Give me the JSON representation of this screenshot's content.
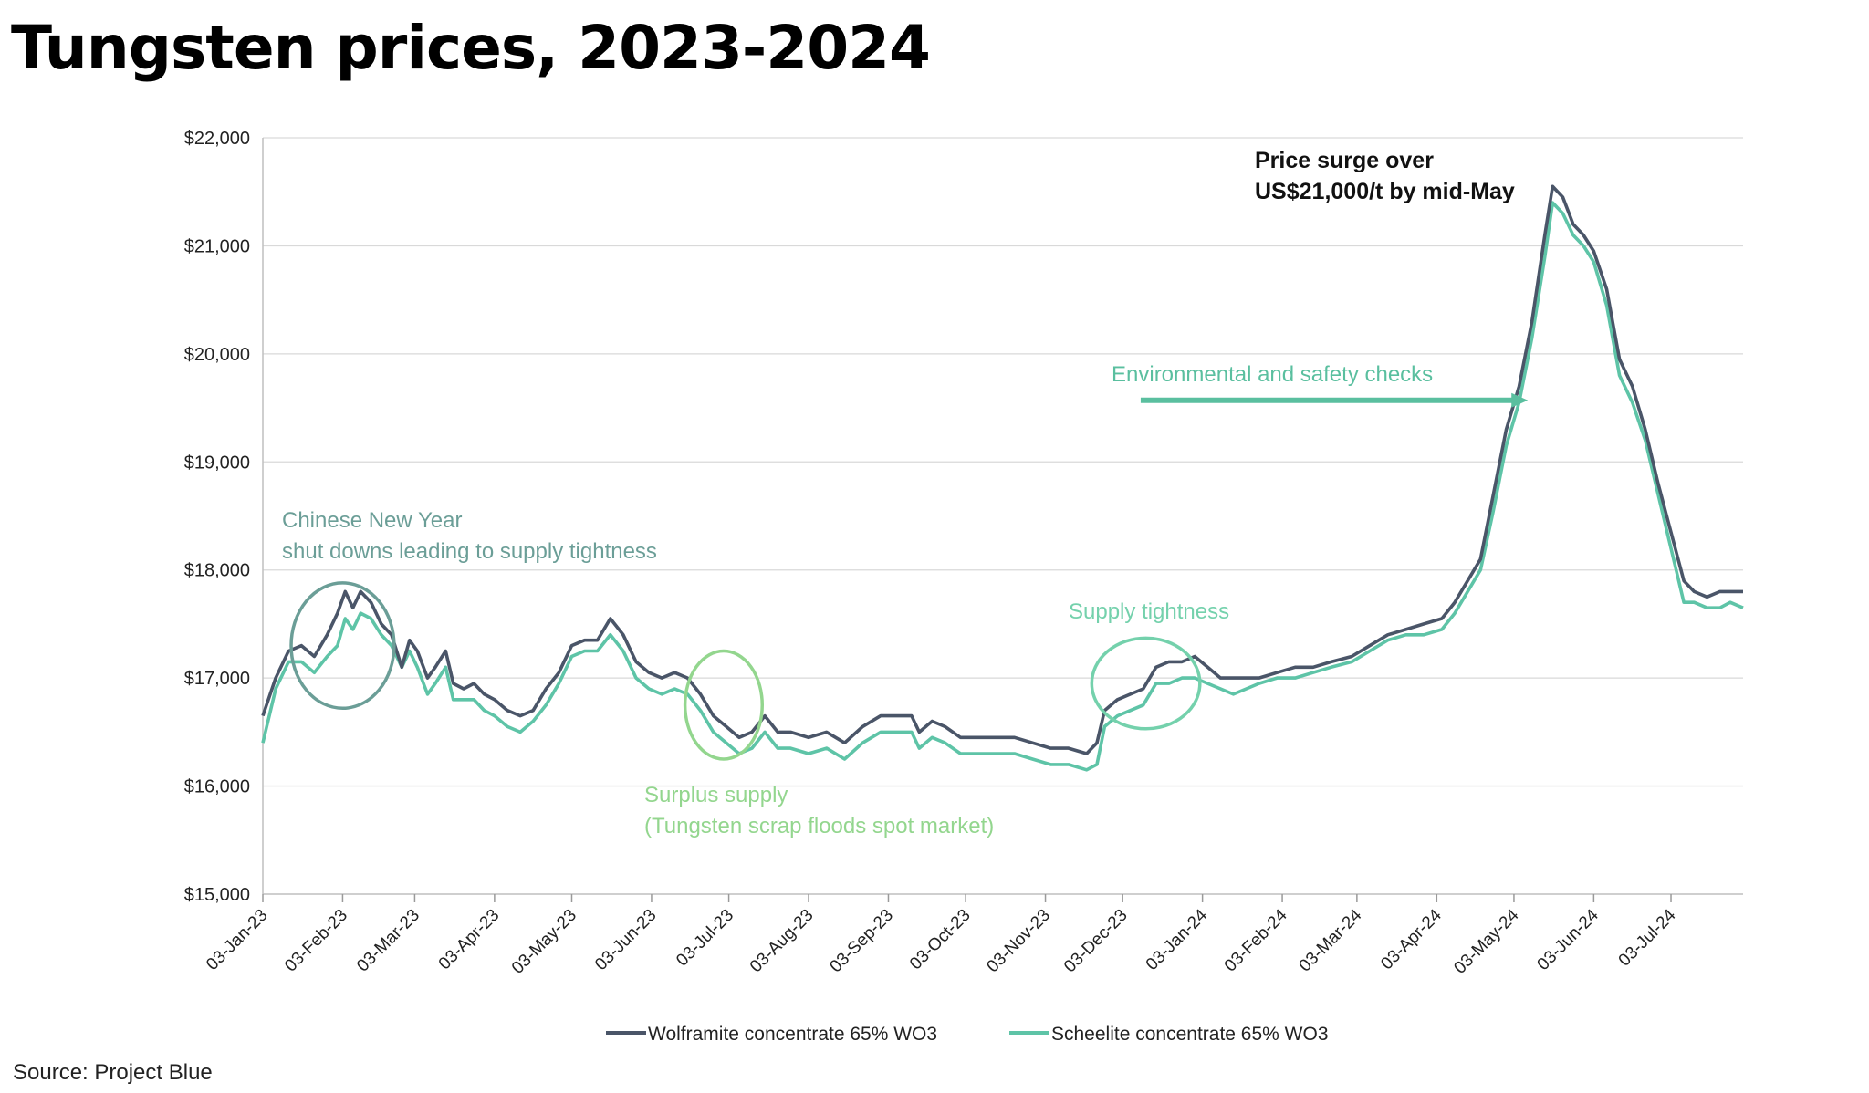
{
  "title": "Tungsten prices, 2023-2024",
  "source": "Source: Project Blue",
  "colors": {
    "wolframite": "#4a5568",
    "scheelite": "#5ec4a7",
    "cny": "#6b9e97",
    "surplus": "#93d68e",
    "tightness": "#74d1ac",
    "env": "#5abf9f",
    "surge": "#111111"
  },
  "chart_data": {
    "type": "line",
    "title": "",
    "xlabel": "",
    "ylabel": "",
    "ylim": [
      15000,
      22000
    ],
    "yticks": [
      15000,
      16000,
      17000,
      18000,
      19000,
      20000,
      21000,
      22000
    ],
    "ytick_labels": [
      "$15,000",
      "$16,000",
      "$17,000",
      "$18,000",
      "$19,000",
      "$20,000",
      "$21,000",
      "$22,000"
    ],
    "xlim": [
      "2023-01-03",
      "2024-07-31"
    ],
    "xticks": [
      "2023-01-03",
      "2023-02-03",
      "2023-03-03",
      "2023-04-03",
      "2023-05-03",
      "2023-06-03",
      "2023-07-03",
      "2023-08-03",
      "2023-09-03",
      "2023-10-03",
      "2023-11-03",
      "2023-12-03",
      "2024-01-03",
      "2024-02-03",
      "2024-03-03",
      "2024-04-03",
      "2024-05-03",
      "2024-06-03",
      "2024-07-03"
    ],
    "xtick_labels": [
      "03-Jan-23",
      "03-Feb-23",
      "03-Mar-23",
      "03-Apr-23",
      "03-May-23",
      "03-Jun-23",
      "03-Jul-23",
      "03-Aug-23",
      "03-Sep-23",
      "03-Oct-23",
      "03-Nov-23",
      "03-Dec-23",
      "03-Jan-24",
      "03-Feb-24",
      "03-Mar-24",
      "03-Apr-24",
      "03-May-24",
      "03-Jun-24",
      "03-Jul-24"
    ],
    "grid": true,
    "legend_position": "bottom",
    "series": [
      {
        "name": "Wolframite concentrate 65% WO3",
        "color": "#4a5568",
        "points": [
          [
            "2023-01-03",
            16650
          ],
          [
            "2023-01-08",
            17000
          ],
          [
            "2023-01-13",
            17250
          ],
          [
            "2023-01-18",
            17300
          ],
          [
            "2023-01-23",
            17200
          ],
          [
            "2023-01-28",
            17400
          ],
          [
            "2023-02-01",
            17600
          ],
          [
            "2023-02-04",
            17800
          ],
          [
            "2023-02-07",
            17650
          ],
          [
            "2023-02-10",
            17800
          ],
          [
            "2023-02-14",
            17700
          ],
          [
            "2023-02-18",
            17500
          ],
          [
            "2023-02-22",
            17400
          ],
          [
            "2023-02-26",
            17100
          ],
          [
            "2023-03-01",
            17350
          ],
          [
            "2023-03-04",
            17250
          ],
          [
            "2023-03-08",
            17000
          ],
          [
            "2023-03-11",
            17100
          ],
          [
            "2023-03-15",
            17250
          ],
          [
            "2023-03-18",
            16950
          ],
          [
            "2023-03-22",
            16900
          ],
          [
            "2023-03-26",
            16950
          ],
          [
            "2023-03-30",
            16850
          ],
          [
            "2023-04-03",
            16800
          ],
          [
            "2023-04-08",
            16700
          ],
          [
            "2023-04-13",
            16650
          ],
          [
            "2023-04-18",
            16700
          ],
          [
            "2023-04-23",
            16900
          ],
          [
            "2023-04-28",
            17050
          ],
          [
            "2023-05-03",
            17300
          ],
          [
            "2023-05-08",
            17350
          ],
          [
            "2023-05-13",
            17350
          ],
          [
            "2023-05-18",
            17550
          ],
          [
            "2023-05-23",
            17400
          ],
          [
            "2023-05-28",
            17150
          ],
          [
            "2023-06-02",
            17050
          ],
          [
            "2023-06-07",
            17000
          ],
          [
            "2023-06-12",
            17050
          ],
          [
            "2023-06-17",
            17000
          ],
          [
            "2023-06-22",
            16850
          ],
          [
            "2023-06-27",
            16650
          ],
          [
            "2023-07-02",
            16550
          ],
          [
            "2023-07-07",
            16450
          ],
          [
            "2023-07-12",
            16500
          ],
          [
            "2023-07-17",
            16650
          ],
          [
            "2023-07-22",
            16500
          ],
          [
            "2023-07-27",
            16500
          ],
          [
            "2023-08-03",
            16450
          ],
          [
            "2023-08-10",
            16500
          ],
          [
            "2023-08-17",
            16400
          ],
          [
            "2023-08-24",
            16550
          ],
          [
            "2023-08-31",
            16650
          ],
          [
            "2023-09-07",
            16650
          ],
          [
            "2023-09-12",
            16650
          ],
          [
            "2023-09-15",
            16500
          ],
          [
            "2023-09-20",
            16600
          ],
          [
            "2023-09-25",
            16550
          ],
          [
            "2023-10-01",
            16450
          ],
          [
            "2023-10-08",
            16450
          ],
          [
            "2023-10-15",
            16450
          ],
          [
            "2023-10-22",
            16450
          ],
          [
            "2023-10-29",
            16400
          ],
          [
            "2023-11-05",
            16350
          ],
          [
            "2023-11-12",
            16350
          ],
          [
            "2023-11-19",
            16300
          ],
          [
            "2023-11-23",
            16400
          ],
          [
            "2023-11-26",
            16700
          ],
          [
            "2023-12-01",
            16800
          ],
          [
            "2023-12-06",
            16850
          ],
          [
            "2023-12-11",
            16900
          ],
          [
            "2023-12-16",
            17100
          ],
          [
            "2023-12-21",
            17150
          ],
          [
            "2023-12-26",
            17150
          ],
          [
            "2023-12-31",
            17200
          ],
          [
            "2024-01-05",
            17100
          ],
          [
            "2024-01-10",
            17000
          ],
          [
            "2024-01-15",
            17000
          ],
          [
            "2024-01-20",
            17000
          ],
          [
            "2024-01-25",
            17000
          ],
          [
            "2024-02-01",
            17050
          ],
          [
            "2024-02-08",
            17100
          ],
          [
            "2024-02-15",
            17100
          ],
          [
            "2024-02-22",
            17150
          ],
          [
            "2024-03-01",
            17200
          ],
          [
            "2024-03-08",
            17300
          ],
          [
            "2024-03-15",
            17400
          ],
          [
            "2024-03-22",
            17450
          ],
          [
            "2024-03-29",
            17500
          ],
          [
            "2024-04-05",
            17550
          ],
          [
            "2024-04-10",
            17700
          ],
          [
            "2024-04-15",
            17900
          ],
          [
            "2024-04-20",
            18100
          ],
          [
            "2024-04-25",
            18700
          ],
          [
            "2024-04-30",
            19300
          ],
          [
            "2024-05-05",
            19700
          ],
          [
            "2024-05-10",
            20300
          ],
          [
            "2024-05-15",
            21100
          ],
          [
            "2024-05-18",
            21550
          ],
          [
            "2024-05-22",
            21450
          ],
          [
            "2024-05-26",
            21200
          ],
          [
            "2024-05-30",
            21100
          ],
          [
            "2024-06-03",
            20950
          ],
          [
            "2024-06-08",
            20600
          ],
          [
            "2024-06-13",
            19950
          ],
          [
            "2024-06-18",
            19700
          ],
          [
            "2024-06-23",
            19300
          ],
          [
            "2024-06-28",
            18800
          ],
          [
            "2024-07-03",
            18350
          ],
          [
            "2024-07-08",
            17900
          ],
          [
            "2024-07-12",
            17800
          ],
          [
            "2024-07-17",
            17750
          ],
          [
            "2024-07-22",
            17800
          ],
          [
            "2024-07-26",
            17800
          ],
          [
            "2024-07-31",
            17800
          ]
        ]
      },
      {
        "name": "Scheelite concentrate 65% WO3",
        "color": "#5ec4a7",
        "points": [
          [
            "2023-01-03",
            16400
          ],
          [
            "2023-01-08",
            16900
          ],
          [
            "2023-01-13",
            17150
          ],
          [
            "2023-01-18",
            17150
          ],
          [
            "2023-01-23",
            17050
          ],
          [
            "2023-01-28",
            17200
          ],
          [
            "2023-02-01",
            17300
          ],
          [
            "2023-02-04",
            17550
          ],
          [
            "2023-02-07",
            17450
          ],
          [
            "2023-02-10",
            17600
          ],
          [
            "2023-02-14",
            17550
          ],
          [
            "2023-02-18",
            17400
          ],
          [
            "2023-02-22",
            17300
          ],
          [
            "2023-02-26",
            17100
          ],
          [
            "2023-03-01",
            17250
          ],
          [
            "2023-03-04",
            17100
          ],
          [
            "2023-03-08",
            16850
          ],
          [
            "2023-03-11",
            16950
          ],
          [
            "2023-03-15",
            17100
          ],
          [
            "2023-03-18",
            16800
          ],
          [
            "2023-03-22",
            16800
          ],
          [
            "2023-03-26",
            16800
          ],
          [
            "2023-03-30",
            16700
          ],
          [
            "2023-04-03",
            16650
          ],
          [
            "2023-04-08",
            16550
          ],
          [
            "2023-04-13",
            16500
          ],
          [
            "2023-04-18",
            16600
          ],
          [
            "2023-04-23",
            16750
          ],
          [
            "2023-04-28",
            16950
          ],
          [
            "2023-05-03",
            17200
          ],
          [
            "2023-05-08",
            17250
          ],
          [
            "2023-05-13",
            17250
          ],
          [
            "2023-05-18",
            17400
          ],
          [
            "2023-05-23",
            17250
          ],
          [
            "2023-05-28",
            17000
          ],
          [
            "2023-06-02",
            16900
          ],
          [
            "2023-06-07",
            16850
          ],
          [
            "2023-06-12",
            16900
          ],
          [
            "2023-06-17",
            16850
          ],
          [
            "2023-06-22",
            16700
          ],
          [
            "2023-06-27",
            16500
          ],
          [
            "2023-07-02",
            16400
          ],
          [
            "2023-07-07",
            16300
          ],
          [
            "2023-07-12",
            16350
          ],
          [
            "2023-07-17",
            16500
          ],
          [
            "2023-07-22",
            16350
          ],
          [
            "2023-07-27",
            16350
          ],
          [
            "2023-08-03",
            16300
          ],
          [
            "2023-08-10",
            16350
          ],
          [
            "2023-08-17",
            16250
          ],
          [
            "2023-08-24",
            16400
          ],
          [
            "2023-08-31",
            16500
          ],
          [
            "2023-09-07",
            16500
          ],
          [
            "2023-09-12",
            16500
          ],
          [
            "2023-09-15",
            16350
          ],
          [
            "2023-09-20",
            16450
          ],
          [
            "2023-09-25",
            16400
          ],
          [
            "2023-10-01",
            16300
          ],
          [
            "2023-10-08",
            16300
          ],
          [
            "2023-10-15",
            16300
          ],
          [
            "2023-10-22",
            16300
          ],
          [
            "2023-10-29",
            16250
          ],
          [
            "2023-11-05",
            16200
          ],
          [
            "2023-11-12",
            16200
          ],
          [
            "2023-11-19",
            16150
          ],
          [
            "2023-11-23",
            16200
          ],
          [
            "2023-11-26",
            16550
          ],
          [
            "2023-12-01",
            16650
          ],
          [
            "2023-12-06",
            16700
          ],
          [
            "2023-12-11",
            16750
          ],
          [
            "2023-12-16",
            16950
          ],
          [
            "2023-12-21",
            16950
          ],
          [
            "2023-12-26",
            17000
          ],
          [
            "2023-12-31",
            17000
          ],
          [
            "2024-01-05",
            16950
          ],
          [
            "2024-01-10",
            16900
          ],
          [
            "2024-01-15",
            16850
          ],
          [
            "2024-01-20",
            16900
          ],
          [
            "2024-01-25",
            16950
          ],
          [
            "2024-02-01",
            17000
          ],
          [
            "2024-02-08",
            17000
          ],
          [
            "2024-02-15",
            17050
          ],
          [
            "2024-02-22",
            17100
          ],
          [
            "2024-03-01",
            17150
          ],
          [
            "2024-03-08",
            17250
          ],
          [
            "2024-03-15",
            17350
          ],
          [
            "2024-03-22",
            17400
          ],
          [
            "2024-03-29",
            17400
          ],
          [
            "2024-04-05",
            17450
          ],
          [
            "2024-04-10",
            17600
          ],
          [
            "2024-04-15",
            17800
          ],
          [
            "2024-04-20",
            18000
          ],
          [
            "2024-04-25",
            18550
          ],
          [
            "2024-04-30",
            19150
          ],
          [
            "2024-05-05",
            19550
          ],
          [
            "2024-05-10",
            20150
          ],
          [
            "2024-05-15",
            20900
          ],
          [
            "2024-05-18",
            21400
          ],
          [
            "2024-05-22",
            21300
          ],
          [
            "2024-05-26",
            21100
          ],
          [
            "2024-05-30",
            21000
          ],
          [
            "2024-06-03",
            20850
          ],
          [
            "2024-06-08",
            20450
          ],
          [
            "2024-06-13",
            19800
          ],
          [
            "2024-06-18",
            19550
          ],
          [
            "2024-06-23",
            19200
          ],
          [
            "2024-06-28",
            18700
          ],
          [
            "2024-07-03",
            18200
          ],
          [
            "2024-07-08",
            17700
          ],
          [
            "2024-07-12",
            17700
          ],
          [
            "2024-07-17",
            17650
          ],
          [
            "2024-07-22",
            17650
          ],
          [
            "2024-07-26",
            17700
          ],
          [
            "2024-07-31",
            17650
          ]
        ]
      }
    ],
    "annotations": {
      "cny_line1": "Chinese New Year",
      "cny_line2": "shut downs leading to supply tightness",
      "surplus_line1": "Surplus supply",
      "surplus_line2": "(Tungsten scrap floods spot market)",
      "tightness": "Supply tightness",
      "env": "Environmental and safety checks",
      "surge_line1": "Price surge over",
      "surge_line2": "US$21,000/t by mid-May"
    },
    "annotation_circles": [
      {
        "name": "cny-circle",
        "center": [
          "2023-02-03",
          17300
        ],
        "rx_days": 20,
        "ry_value": 580,
        "color": "cny"
      },
      {
        "name": "surplus-circle",
        "center": [
          "2023-07-01",
          16750
        ],
        "rx_days": 15,
        "ry_value": 500,
        "color": "surplus"
      },
      {
        "name": "tightness-circle",
        "center": [
          "2023-12-12",
          16950
        ],
        "rx_days": 21,
        "ry_value": 420,
        "color": "tightness"
      }
    ],
    "env_arrow": {
      "from": "2023-12-10",
      "to": "2024-05-07",
      "value": 19570
    }
  }
}
